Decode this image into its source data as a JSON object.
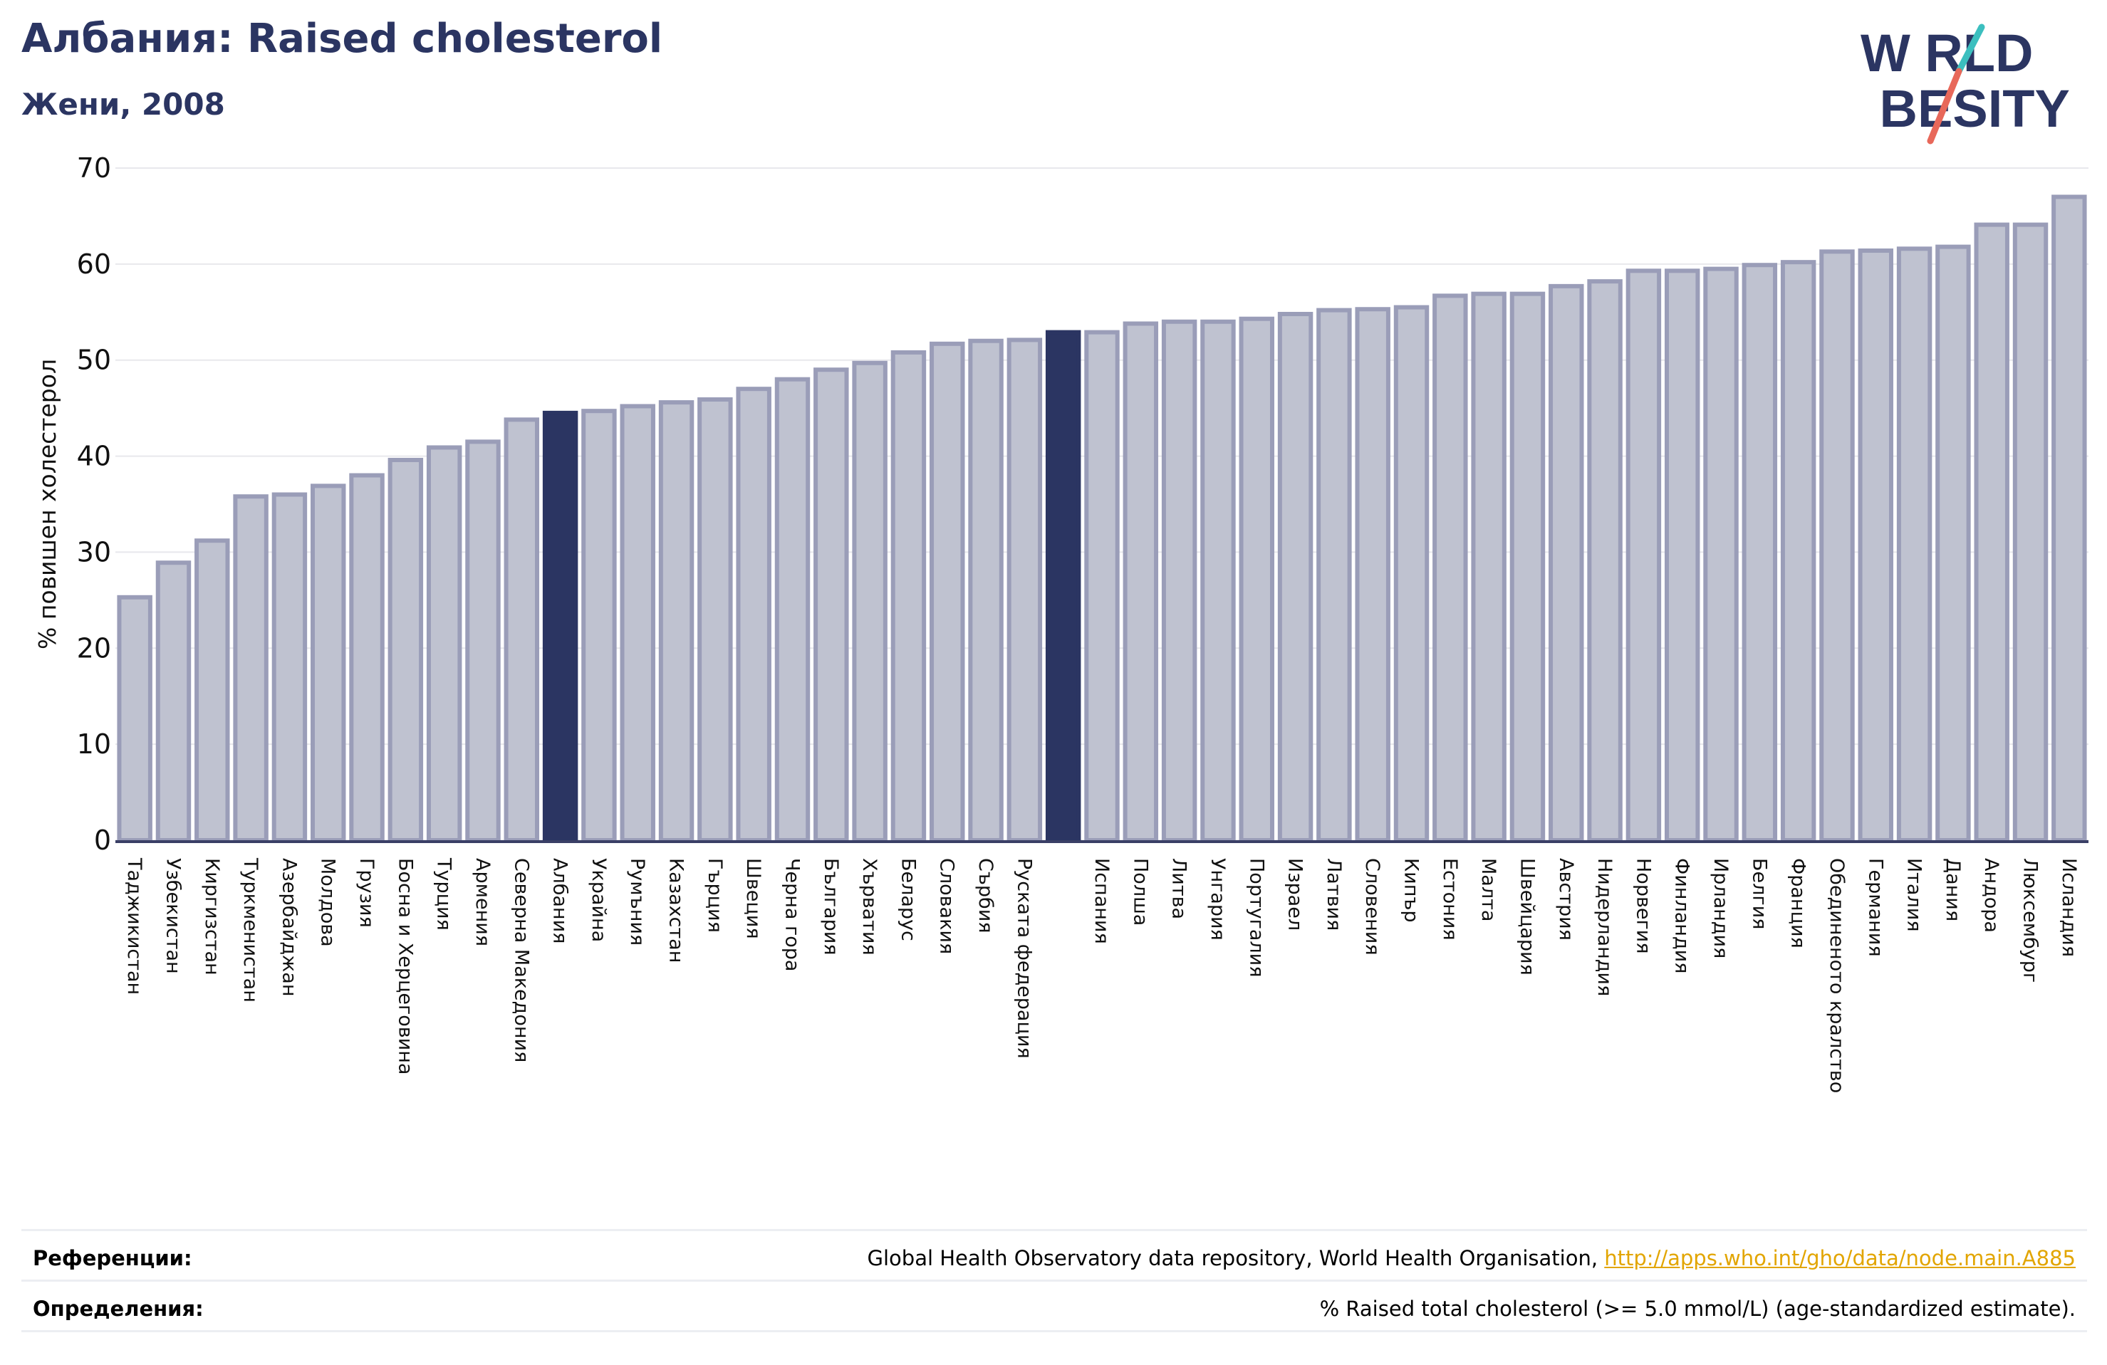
{
  "header": {
    "title": "Албания: Raised cholesterol",
    "subtitle": "Жени, 2008"
  },
  "logo": {
    "line1": "W RLD",
    "line2": " BESITY",
    "name": "world-obesity-logo",
    "colors": {
      "text": "#2b3562",
      "slash_top": "#3cbfbf",
      "slash_bottom": "#e8685a"
    }
  },
  "colors": {
    "bar_fill": "#bfc2d0",
    "bar_stroke": "#9a9db8",
    "highlight": "#2b3562",
    "axis": "#3a3f66",
    "grid": "#e8e8ec"
  },
  "chart_data": {
    "type": "bar",
    "ylabel": "% повишен холестерол",
    "ylim": [
      0,
      70
    ],
    "yticks": [
      0,
      10,
      20,
      30,
      40,
      50,
      60,
      70
    ],
    "grid": true,
    "categories": [
      "Таджикистан",
      "Узбекистан",
      "Киргизстан",
      "Туркменистан",
      "Азербайджан",
      "Молдова",
      "Грузия",
      "Босна и Херцеговина",
      "Турция",
      "Армения",
      "Северна Македония",
      "Албания",
      "Украйна",
      "Румъния",
      "Казахстан",
      "Гърция",
      "Швеция",
      "Черна гора",
      "България",
      "Хърватия",
      "Беларус",
      "Словакия",
      "Сърбия",
      "Руската федерация",
      "",
      "Испания",
      "Полша",
      "Литва",
      "Унгария",
      "Португалия",
      "Израел",
      "Латвия",
      "Словения",
      "Кипър",
      "Естония",
      "Малта",
      "Швейцария",
      "Австрия",
      "Нидерландия",
      "Норвегия",
      "Финландия",
      "Ирландия",
      "Белгия",
      "Франция",
      "Обединеното кралство",
      "Германия",
      "Италия",
      "Дания",
      "Андора",
      "Люксембург",
      "Исландия"
    ],
    "values": [
      25.3,
      28.9,
      31.2,
      35.8,
      36.0,
      36.9,
      38.0,
      39.6,
      40.9,
      41.5,
      43.8,
      44.5,
      44.7,
      45.2,
      45.6,
      45.9,
      47.0,
      48.0,
      49.0,
      49.7,
      50.8,
      51.7,
      52.0,
      52.1,
      52.9,
      52.9,
      53.8,
      54.0,
      54.0,
      54.3,
      54.8,
      55.2,
      55.3,
      55.5,
      56.7,
      56.9,
      56.9,
      57.7,
      58.2,
      59.3,
      59.3,
      59.5,
      59.9,
      60.2,
      61.3,
      61.4,
      61.6,
      61.8,
      64.1,
      64.1,
      67.0
    ],
    "highlighted": [
      "Албания",
      ""
    ]
  },
  "footer": {
    "references_label": "Референции:",
    "references_text": "Global Health Observatory data repository, World Health Organisation, ",
    "references_link": "http://apps.who.int/gho/data/node.main.A885",
    "definitions_label": "Определения:",
    "definitions_text": "% Raised total cholesterol (>= 5.0 mmol/L) (age-standardized estimate)."
  }
}
